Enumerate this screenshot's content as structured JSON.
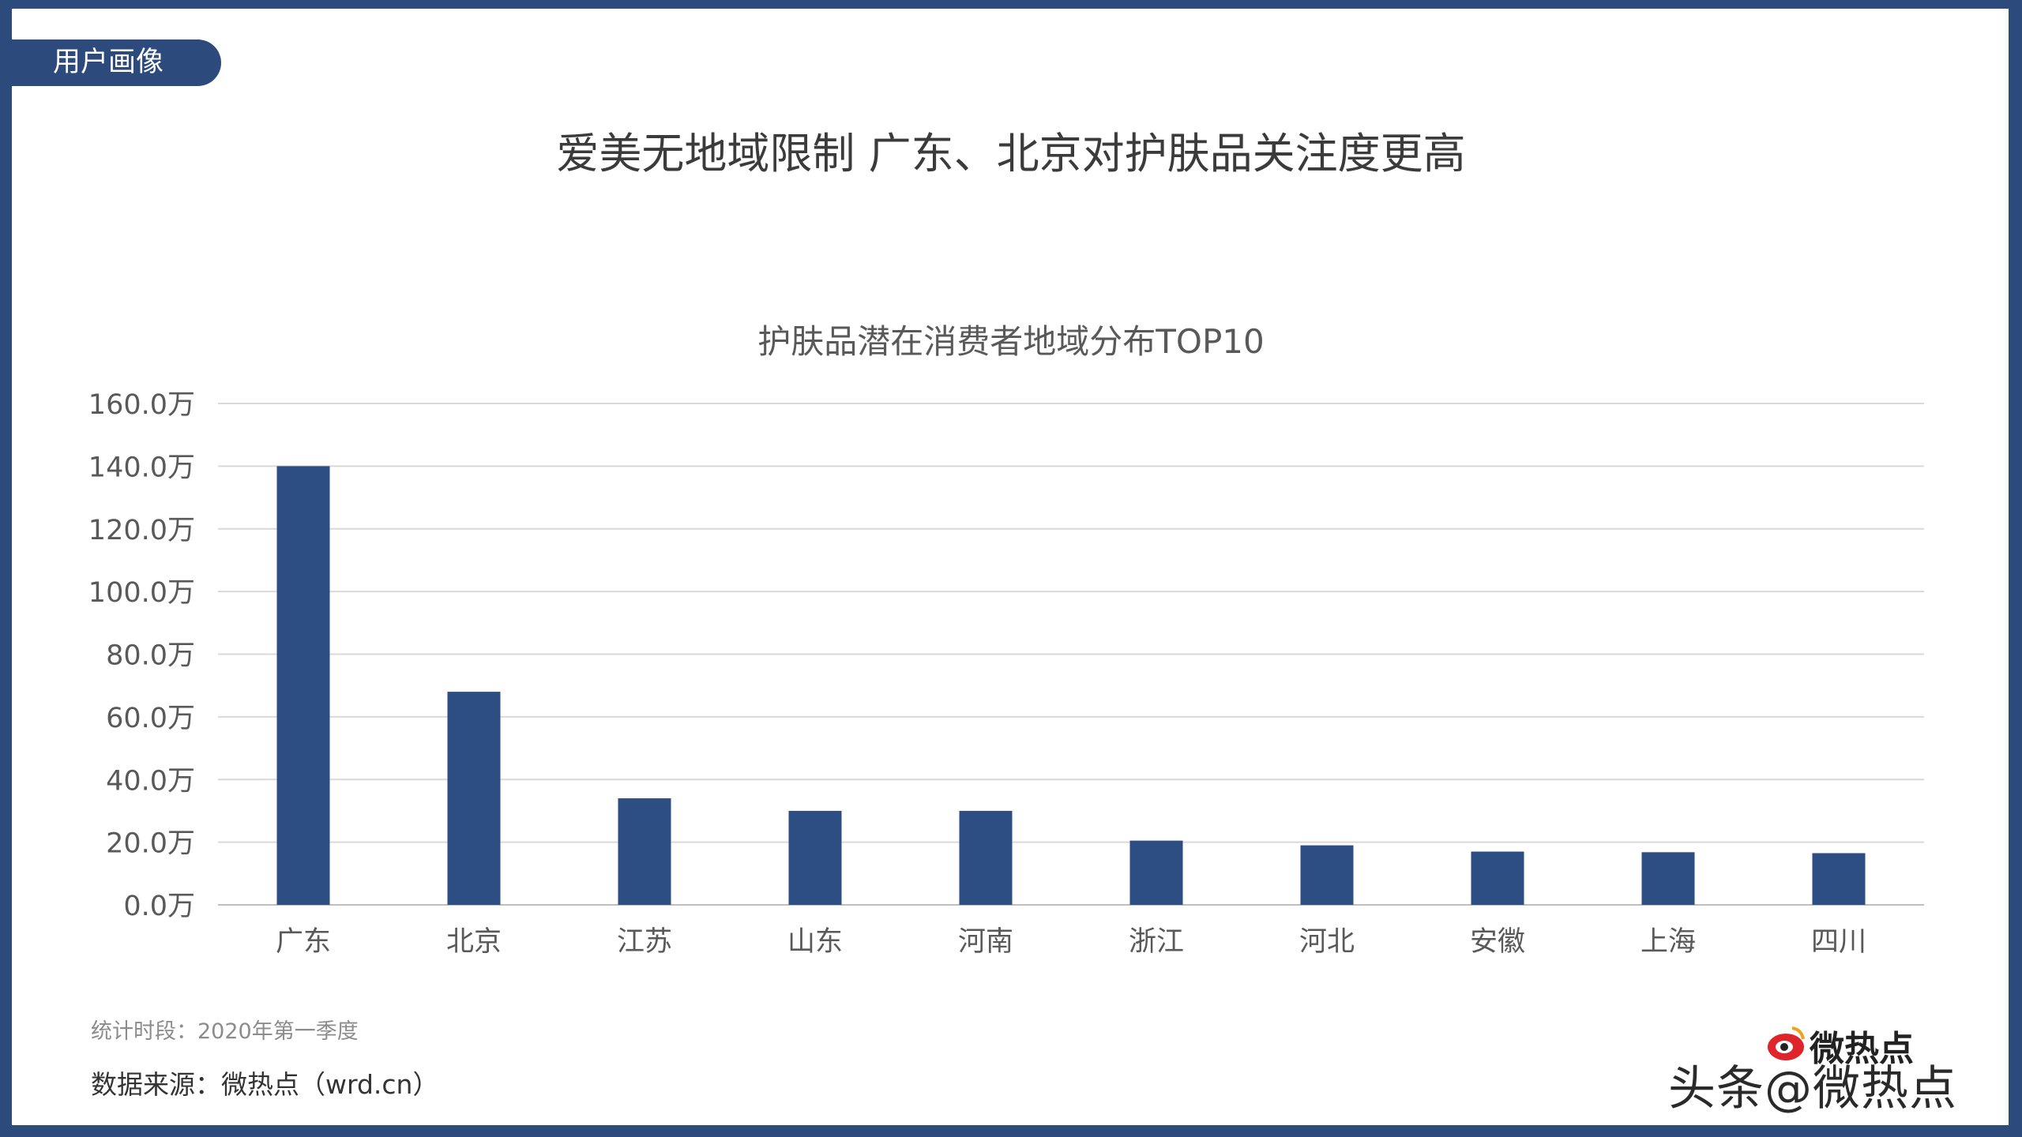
{
  "header": {
    "tag_label": "用户画像",
    "main_title": "爱美无地域限制 广东、北京对护肤品关注度更高"
  },
  "chart_data": {
    "type": "bar",
    "title": "护肤品潜在消费者地域分布TOP10",
    "xlabel": "",
    "ylabel": "",
    "categories": [
      "广东",
      "北京",
      "江苏",
      "山东",
      "河南",
      "浙江",
      "河北",
      "安徽",
      "上海",
      "四川"
    ],
    "values": [
      140.0,
      68.0,
      34.0,
      30.0,
      30.0,
      20.5,
      19.0,
      17.0,
      16.8,
      16.5
    ],
    "ylim": [
      0,
      160
    ],
    "yticks": [
      "0.0万",
      "20.0万",
      "40.0万",
      "60.0万",
      "80.0万",
      "100.0万",
      "120.0万",
      "140.0万",
      "160.0万"
    ],
    "grid": true,
    "bar_color": "#2d4e82"
  },
  "footer": {
    "period": "统计时段：2020年第一季度",
    "source": "数据来源：微热点（wrd.cn）"
  },
  "watermark": {
    "logo_text": "微热点",
    "text": "头条@微热点"
  },
  "colors": {
    "frame": "#2d4a7d",
    "bar": "#2d4e82",
    "grid": "#d9d9d9",
    "axis_text": "#595959"
  }
}
